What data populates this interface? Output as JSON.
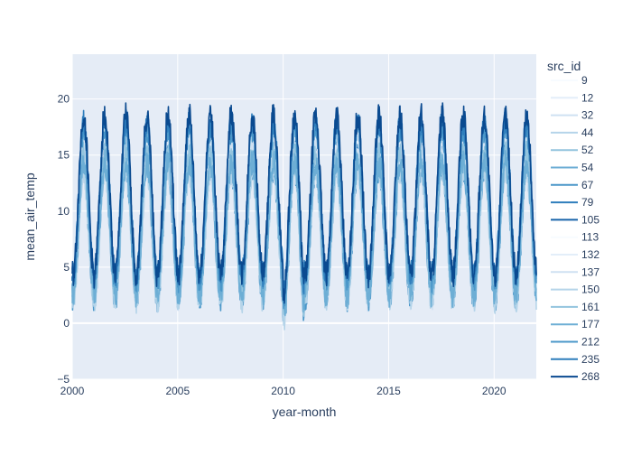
{
  "chart_data": {
    "type": "line",
    "xlabel": "year-month",
    "ylabel": "mean_air_temp",
    "xlim": [
      2000,
      2022
    ],
    "ylim": [
      -5,
      24
    ],
    "x_ticks": [
      2000,
      2005,
      2010,
      2015,
      2020
    ],
    "x_tick_labels": [
      "2000",
      "2005",
      "2010",
      "2015",
      "2020"
    ],
    "y_ticks": [
      -5,
      0,
      5,
      10,
      15,
      20
    ],
    "y_tick_labels": [
      "−5",
      "0",
      "5",
      "10",
      "15",
      "20"
    ],
    "grid": true,
    "legend_position": "right",
    "legend_title": "src_id",
    "series": [
      {
        "name": "9",
        "color": "#f7fbff",
        "offset": 0.0,
        "amp": 1.0
      },
      {
        "name": "12",
        "color": "#e3eef9",
        "offset": -0.5,
        "amp": 0.95
      },
      {
        "name": "32",
        "color": "#cfe1f2",
        "offset": -1.5,
        "amp": 0.9
      },
      {
        "name": "44",
        "color": "#b5d4e9",
        "offset": -1.0,
        "amp": 0.92
      },
      {
        "name": "52",
        "color": "#93c4de",
        "offset": -0.8,
        "amp": 0.9
      },
      {
        "name": "54",
        "color": "#6daed5",
        "offset": -1.2,
        "amp": 0.88
      },
      {
        "name": "67",
        "color": "#4b97c9",
        "offset": -1.8,
        "amp": 0.86
      },
      {
        "name": "79",
        "color": "#2f7ebc",
        "offset": -0.3,
        "amp": 0.93
      },
      {
        "name": "105",
        "color": "#1864aa",
        "offset": 0.4,
        "amp": 0.97
      },
      {
        "name": "113",
        "color": "#f7fbff",
        "offset": 0.6,
        "amp": 1.02
      },
      {
        "name": "132",
        "color": "#e3eef9",
        "offset": 0.2,
        "amp": 0.98
      },
      {
        "name": "137",
        "color": "#cfe1f2",
        "offset": -0.6,
        "amp": 0.93
      },
      {
        "name": "150",
        "color": "#b5d4e9",
        "offset": -2.0,
        "amp": 0.85
      },
      {
        "name": "161",
        "color": "#93c4de",
        "offset": -0.9,
        "amp": 0.9
      },
      {
        "name": "177",
        "color": "#6daed5",
        "offset": -1.4,
        "amp": 0.87
      },
      {
        "name": "212",
        "color": "#4b97c9",
        "offset": 0.8,
        "amp": 0.99
      },
      {
        "name": "235",
        "color": "#2f7ebc",
        "offset": 1.3,
        "amp": 1.0
      },
      {
        "name": "268",
        "color": "#0a4a90",
        "offset": 1.6,
        "amp": 1.05
      }
    ]
  }
}
